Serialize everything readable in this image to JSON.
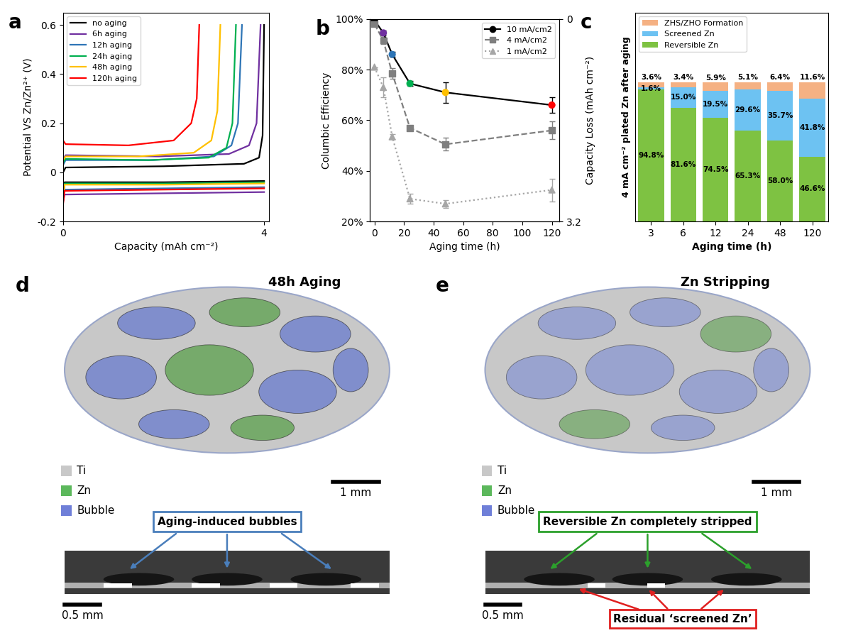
{
  "chart_data": [
    {
      "type": "line",
      "panel_label": "a",
      "xlabel": "Capacity (mAh cm⁻²)",
      "ylabel": "Potential VS Zn/Zn²⁺ (V)",
      "xlim": [
        0,
        4.1
      ],
      "ylim": [
        -0.2,
        0.65
      ],
      "xticks": [
        0,
        4
      ],
      "yticks": [
        -0.2,
        0,
        0.2,
        0.4,
        0.6
      ],
      "legend": "upper left",
      "series": [
        {
          "name": "no aging",
          "color": "#000000",
          "x": [
            0,
            0.03,
            2,
            4,
            null,
            0,
            0.05,
            2.0,
            3.6,
            3.9,
            3.97,
            4.0
          ],
          "values": [
            -0.12,
            -0.04,
            -0.04,
            -0.035,
            null,
            0.0,
            0.02,
            0.025,
            0.035,
            0.06,
            0.15,
            0.6
          ]
        },
        {
          "name": "6h aging",
          "color": "#7030a0",
          "x": [
            0,
            0.03,
            2,
            4,
            null,
            0,
            0.05,
            1.9,
            3.3,
            3.7,
            3.85,
            3.93
          ],
          "values": [
            -0.12,
            -0.09,
            -0.085,
            -0.08,
            null,
            0.05,
            0.07,
            0.065,
            0.075,
            0.11,
            0.2,
            0.6
          ]
        },
        {
          "name": "12h aging",
          "color": "#2e75b6",
          "x": [
            0,
            0.03,
            2,
            4,
            null,
            0,
            0.05,
            1.8,
            3.0,
            3.35,
            3.48,
            3.56
          ],
          "values": [
            -0.1,
            -0.07,
            -0.065,
            -0.06,
            null,
            0.03,
            0.05,
            0.05,
            0.065,
            0.11,
            0.2,
            0.6
          ]
        },
        {
          "name": "24h aging",
          "color": "#00b050",
          "x": [
            0,
            0.03,
            2,
            4,
            null,
            0,
            0.05,
            1.7,
            2.9,
            3.25,
            3.37,
            3.44
          ],
          "values": [
            -0.08,
            -0.045,
            -0.045,
            -0.04,
            null,
            0.04,
            0.055,
            0.05,
            0.06,
            0.1,
            0.2,
            0.6
          ]
        },
        {
          "name": "48h aging",
          "color": "#ffc000",
          "x": [
            0,
            0.03,
            2,
            4,
            null,
            0,
            0.05,
            1.5,
            2.6,
            2.95,
            3.07,
            3.13
          ],
          "values": [
            -0.09,
            -0.05,
            -0.05,
            -0.045,
            null,
            0.05,
            0.065,
            0.065,
            0.08,
            0.13,
            0.25,
            0.6
          ]
        },
        {
          "name": "120h aging",
          "color": "#ff0000",
          "x": [
            0,
            0.03,
            2,
            4,
            null,
            0,
            0.05,
            1.3,
            2.2,
            2.55,
            2.66,
            2.71
          ],
          "values": [
            -0.13,
            -0.075,
            -0.07,
            -0.065,
            null,
            0.13,
            0.115,
            0.11,
            0.13,
            0.2,
            0.3,
            0.6
          ]
        }
      ]
    },
    {
      "type": "line",
      "panel_label": "b",
      "xlabel": "Aging time (h)",
      "ylabel": "Columbic Efficiency",
      "y2label": "Capacity Loss (mAh cm⁻²)",
      "xlim": [
        -3,
        125
      ],
      "ylim": [
        20,
        100
      ],
      "y2lim": [
        3.2,
        0
      ],
      "xticks": [
        0,
        20,
        40,
        60,
        80,
        100,
        120
      ],
      "yticks": [
        {
          "value": 20,
          "label": "20%"
        },
        {
          "value": 40,
          "label": "40%"
        },
        {
          "value": 60,
          "label": "60%"
        },
        {
          "value": 80,
          "label": "80%"
        },
        {
          "value": 100,
          "label": "100%"
        }
      ],
      "y2ticks": [
        0,
        3.2
      ],
      "legend": "upper right",
      "series": [
        {
          "name": "10 mA/cm2",
          "color": "#000000",
          "marker": "circle",
          "line_style": "solid",
          "colors": [
            "#000000",
            "#7030a0",
            "#2e75b6",
            "#00b050",
            "#ffc000",
            "#ff0000"
          ],
          "x": [
            0,
            6,
            12,
            24,
            48,
            120
          ],
          "values": [
            99.5,
            94.5,
            86,
            74.5,
            71,
            66
          ],
          "errors": [
            0.5,
            1,
            1,
            1,
            4,
            3
          ]
        },
        {
          "name": "4 mA/cm2",
          "color": "#7f7f7f",
          "marker": "square",
          "line_style": "dashed",
          "x": [
            0,
            6,
            12,
            24,
            48,
            120
          ],
          "values": [
            98,
            91.5,
            78.5,
            57,
            50.5,
            56
          ],
          "errors": [
            1,
            1.5,
            2,
            1,
            2.5,
            3.5
          ]
        },
        {
          "name": "1 mA/cm2",
          "color": "#a6a6a6",
          "marker": "triangle",
          "line_style": "dotted",
          "x": [
            0,
            6,
            12,
            24,
            48,
            120
          ],
          "values": [
            81,
            73,
            53.5,
            29,
            27,
            32.5
          ],
          "errors": [
            0,
            4,
            1,
            2,
            1.5,
            4.5
          ]
        }
      ]
    },
    {
      "type": "bar",
      "panel_label": "c",
      "stacked": true,
      "data_labels": true,
      "tick_labels": "x",
      "xlabel": "Aging time (h)",
      "ylabel": "4 mA cm⁻² plated Zn after aging",
      "ylim": [
        0,
        150
      ],
      "legend": "upper left",
      "categories": [
        "3",
        "6",
        "12",
        "24",
        "48",
        "120"
      ],
      "series": [
        {
          "name": "Reversible Zn",
          "color": "#7ec242",
          "values": [
            94.8,
            81.6,
            74.5,
            65.3,
            58.0,
            46.6
          ],
          "value_labels": [
            "94.8%",
            "81.6%",
            "74.5%",
            "65.3%",
            "58.0%",
            "46.6%"
          ]
        },
        {
          "name": "Screened Zn",
          "color": "#6dc2f2",
          "values": [
            1.6,
            15.0,
            19.5,
            29.6,
            35.7,
            41.8
          ],
          "value_labels": [
            "1.6%",
            "15.0%",
            "19.5%",
            "29.6%",
            "35.7%",
            "41.8%"
          ]
        },
        {
          "name": "ZHS/ZHO Formation",
          "color": "#f5b183",
          "values": [
            3.6,
            3.4,
            5.9,
            5.1,
            6.4,
            11.6
          ],
          "value_labels": [
            "3.6%",
            "3.4%",
            "5.9%",
            "5.1%",
            "6.4%",
            "11.6%"
          ]
        }
      ]
    }
  ],
  "images": [
    {
      "panel_label": "d",
      "title": "48h Aging",
      "key": [
        "Ti",
        "Zn",
        "Bubble"
      ],
      "scale_bars": [
        "1 mm",
        "0.5 mm"
      ],
      "callouts": [
        {
          "text": "Aging-induced bubbles",
          "color": "#4a7ebb"
        }
      ]
    },
    {
      "panel_label": "e",
      "title": "Zn Stripping",
      "key": [
        "Ti",
        "Zn",
        "Bubble"
      ],
      "scale_bars": [
        "1 mm",
        "0.5 mm"
      ],
      "callouts": [
        {
          "text": "Reversible Zn completely stripped",
          "color": "#2ca02c"
        },
        {
          "text": "Residual ‘screened Zn’",
          "color": "#e02020"
        }
      ]
    }
  ]
}
